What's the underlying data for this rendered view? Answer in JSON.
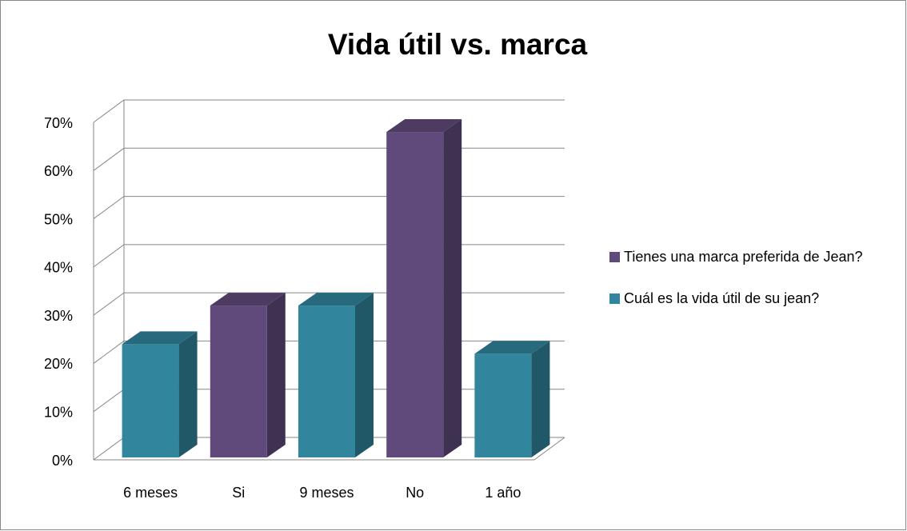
{
  "chart_data": {
    "type": "bar3d",
    "title": "Vida útil vs. marca",
    "categories": [
      "6 meses",
      "Si",
      "9 meses",
      "No",
      "1 año"
    ],
    "series": [
      {
        "name": "Tienes una marca preferida de Jean?",
        "color": "#604a7b",
        "values": [
          null,
          32,
          null,
          68,
          null
        ]
      },
      {
        "name": "Cuál es la vida útil de su jean?",
        "color": "#31859c",
        "values": [
          24,
          null,
          32,
          null,
          22
        ]
      }
    ],
    "ylim": [
      0,
      70
    ],
    "yticks": [
      {
        "value": 0,
        "label": "0%"
      },
      {
        "value": 10,
        "label": "10%"
      },
      {
        "value": 20,
        "label": "20%"
      },
      {
        "value": 30,
        "label": "30%"
      },
      {
        "value": 40,
        "label": "40%"
      },
      {
        "value": 50,
        "label": "50%"
      },
      {
        "value": 60,
        "label": "60%"
      },
      {
        "value": 70,
        "label": "70%"
      }
    ],
    "grid": true,
    "legend": "right"
  }
}
